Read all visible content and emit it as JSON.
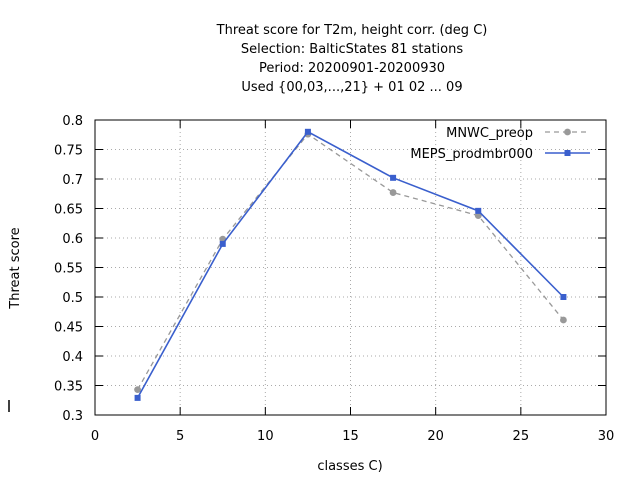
{
  "chart_data": {
    "type": "line",
    "title_lines": [
      "Threat score  for T2m, height corr. (deg C)",
      "Selection: BalticStates     81 stations",
      "Period: 20200901-20200930",
      "Used {00,03,...,21} + 01 02 ... 09"
    ],
    "xlabel": "classes C)",
    "ylabel": "Threat score",
    "xlim": [
      0,
      30
    ],
    "ylim": [
      0.3,
      0.8
    ],
    "xticks": [
      0,
      5,
      10,
      15,
      20,
      25,
      30
    ],
    "yticks": [
      0.3,
      0.35,
      0.4,
      0.45,
      0.5,
      0.55,
      0.6,
      0.65,
      0.7,
      0.75,
      0.8
    ],
    "grid": true,
    "legend_position": "top-right",
    "series": [
      {
        "name": "MNWC_preop",
        "color": "#999999",
        "dash": true,
        "x": [
          2.5,
          7.5,
          12.5,
          17.5,
          22.5,
          27.5
        ],
        "y": [
          0.343,
          0.598,
          0.776,
          0.677,
          0.638,
          0.461
        ]
      },
      {
        "name": "MEPS_prodmbr000",
        "color": "#3a5fcd",
        "dash": false,
        "x": [
          2.5,
          7.5,
          12.5,
          17.5,
          22.5,
          27.5
        ],
        "y": [
          0.329,
          0.59,
          0.78,
          0.702,
          0.646,
          0.5
        ]
      }
    ]
  }
}
